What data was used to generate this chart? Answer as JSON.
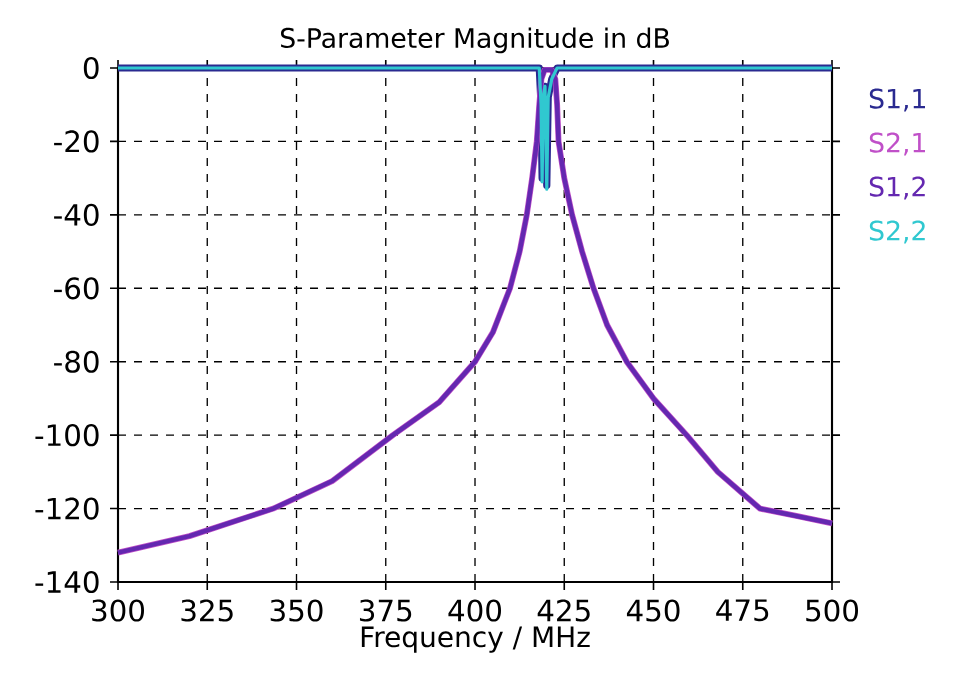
{
  "chart_data": {
    "type": "line",
    "title": "S-Parameter Magnitude in dB",
    "xlabel": "Frequency / MHz",
    "xlim": [
      300,
      500
    ],
    "ylim": [
      -140,
      0
    ],
    "xticks": [
      300,
      325,
      350,
      375,
      400,
      425,
      450,
      475,
      500
    ],
    "yticks": [
      -140,
      -120,
      -100,
      -80,
      -60,
      -40,
      -20,
      0
    ],
    "grid": true,
    "legend": "right",
    "marker": "none",
    "line_style": "solid",
    "series": [
      {
        "name": "S1,1",
        "color": "#2a2a90",
        "x": [
          300,
          418,
          418.5,
          418.8,
          419.1,
          419.6,
          420.1,
          420.5,
          421.5,
          422.5,
          423,
          500
        ],
        "values": [
          0,
          0,
          -10,
          -30,
          -8,
          -5,
          -32,
          -8,
          -3,
          -1,
          0,
          0
        ]
      },
      {
        "name": "S2,1",
        "color": "#c050c8",
        "x": [
          300,
          320,
          343.5,
          360,
          377,
          390,
          400,
          405,
          409.8,
          412.5,
          414.5,
          416,
          417.3,
          418,
          418.6,
          419.5,
          421.5,
          422.5,
          423,
          423.4,
          425,
          427.2,
          430,
          433.2,
          437,
          442.5,
          450,
          459.3,
          468,
          479.8,
          490,
          500
        ],
        "values": [
          -132,
          -127.5,
          -120,
          -112.5,
          -100,
          -91,
          -80,
          -72,
          -60,
          -50,
          -40,
          -30,
          -20,
          -10,
          -3,
          -0.5,
          -0.5,
          -3,
          -10,
          -20,
          -30,
          -40,
          -50,
          -60,
          -70,
          -80,
          -90,
          -100,
          -110,
          -120,
          -122,
          -124
        ]
      },
      {
        "name": "S1,2",
        "color": "#6428b0",
        "x": [
          300,
          320,
          343.5,
          360,
          377,
          390,
          400,
          405,
          409.8,
          412.5,
          414.5,
          416,
          417.3,
          418,
          418.6,
          419.5,
          421.5,
          422.5,
          423,
          423.4,
          425,
          427.2,
          430,
          433.2,
          437,
          442.5,
          450,
          459.3,
          468,
          479.8,
          490,
          500
        ],
        "values": [
          -132,
          -127.5,
          -120,
          -112.5,
          -100,
          -91,
          -80,
          -72,
          -60,
          -50,
          -40,
          -30,
          -20,
          -10,
          -3,
          -0.5,
          -0.5,
          -3,
          -10,
          -20,
          -30,
          -40,
          -50,
          -60,
          -70,
          -80,
          -90,
          -100,
          -110,
          -120,
          -122,
          -124
        ]
      },
      {
        "name": "S2,2",
        "color": "#30c8d0",
        "x": [
          300,
          418,
          418.5,
          418.8,
          419.1,
          419.6,
          420.1,
          420.5,
          421.5,
          422.5,
          423,
          500
        ],
        "values": [
          0,
          0,
          -10,
          -31,
          -8,
          -5,
          -33,
          -8,
          -3,
          -1,
          0,
          0
        ]
      }
    ]
  }
}
